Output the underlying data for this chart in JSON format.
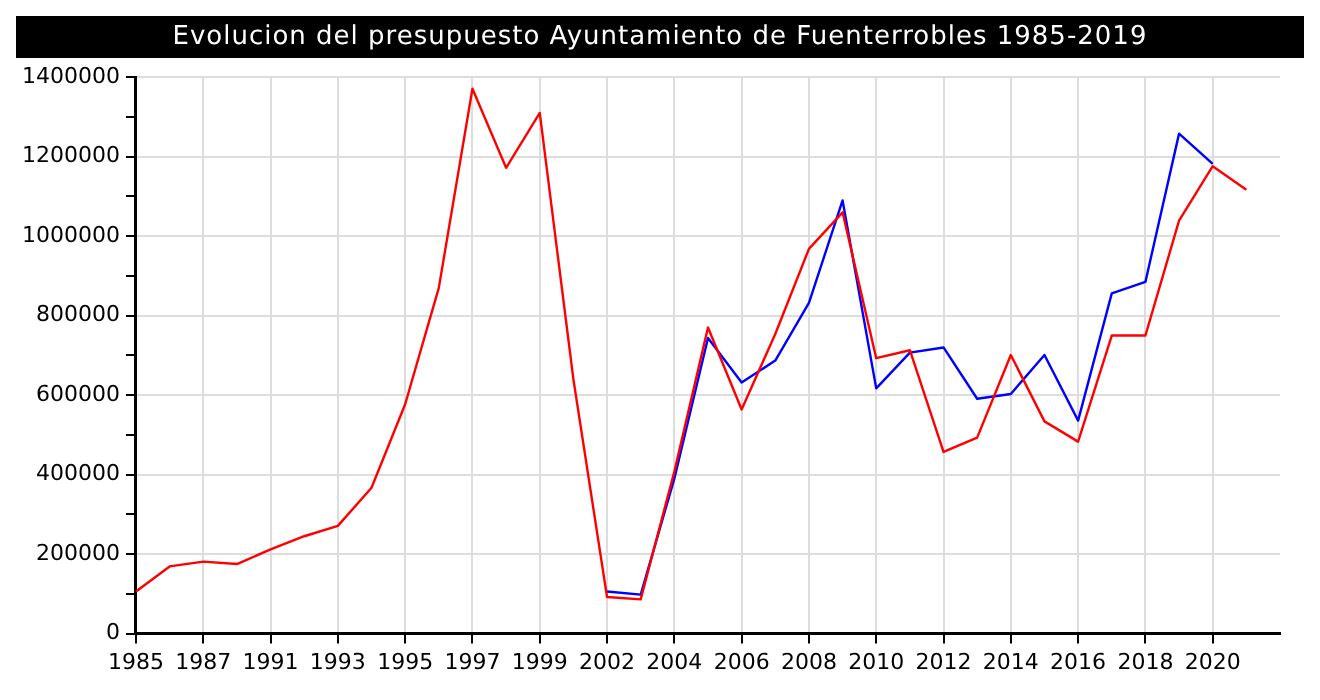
{
  "chart_data": {
    "type": "line",
    "title": "Evolucion del presupuesto Ayuntamiento de Fuenterrobles 1985-2019",
    "categories": [
      "1985",
      null,
      "1987",
      null,
      "1991",
      null,
      "1993",
      null,
      "1995",
      null,
      "1997",
      null,
      "1999",
      null,
      "2002",
      null,
      "2004",
      null,
      "2006",
      null,
      "2008",
      null,
      "2010",
      null,
      "2012",
      null,
      "2014",
      null,
      "2016",
      null,
      "2018",
      null,
      "2020",
      null,
      null
    ],
    "series": [
      {
        "color": "#0000ff",
        "values": [
          null,
          null,
          null,
          null,
          null,
          null,
          null,
          null,
          null,
          null,
          null,
          null,
          null,
          null,
          106000,
          98000,
          390000,
          744000,
          632000,
          687000,
          832000,
          1090000,
          617000,
          707000,
          720000,
          591000,
          603000,
          701000,
          536000,
          856000,
          885000,
          1258000,
          1182000,
          null,
          null
        ]
      },
      {
        "color": "#ff0000",
        "values": [
          106000,
          169000,
          181000,
          175000,
          212000,
          245000,
          271000,
          367000,
          577000,
          870000,
          1371000,
          1172000,
          1310000,
          640000,
          92000,
          86000,
          408000,
          770000,
          564000,
          754000,
          968000,
          1060000,
          693000,
          713000,
          457000,
          493000,
          701000,
          534000,
          483000,
          750000,
          750000,
          1039000,
          1176000,
          1117000,
          null
        ]
      }
    ],
    "ylim": [
      0,
      1400000
    ],
    "yticks": [
      0,
      {
        "value": 100000,
        "label": null
      },
      200000,
      {
        "value": 300000,
        "label": null
      },
      400000,
      {
        "value": 500000,
        "label": null
      },
      600000,
      {
        "value": 700000,
        "label": null
      },
      800000,
      {
        "value": 900000,
        "label": null
      },
      1000000,
      {
        "value": 1100000,
        "label": null
      },
      1200000,
      {
        "value": 1300000,
        "label": null
      },
      1400000
    ],
    "grid": true,
    "marker": "none",
    "line_style": "solid",
    "legend": false
  }
}
